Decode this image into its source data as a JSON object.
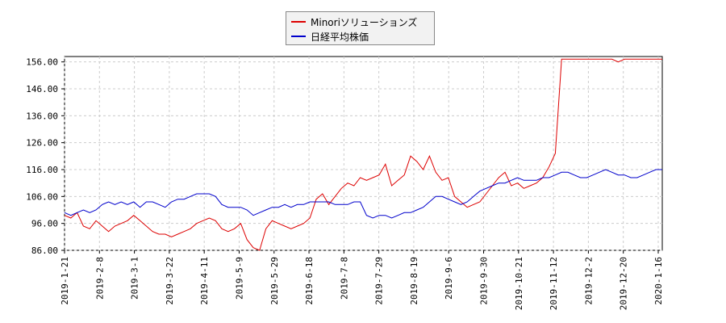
{
  "chart_data": {
    "type": "line",
    "xlabel": "",
    "ylabel": "",
    "ylim": [
      86,
      158
    ],
    "y_ticks": [
      "86.00",
      "96.00",
      "106.00",
      "116.00",
      "126.00",
      "136.00",
      "146.00",
      "156.00"
    ],
    "x_ticks": [
      "2019-1-21",
      "2019-2-8",
      "2019-3-1",
      "2019-3-22",
      "2019-4-11",
      "2019-5-9",
      "2019-5-29",
      "2019-6-18",
      "2019-7-8",
      "2019-7-29",
      "2019-8-19",
      "2019-9-6",
      "2019-9-30",
      "2019-10-21",
      "2019-11-12",
      "2019-12-2",
      "2019-12-20",
      "2020-1-16"
    ],
    "grid": true,
    "legend_position": "top-center",
    "series": [
      {
        "name": "Minoriソリューションズ",
        "color": "#dd0000",
        "values": [
          99,
          98,
          100,
          95,
          94,
          97,
          95,
          93,
          95,
          96,
          97,
          99,
          97,
          95,
          93,
          92,
          92,
          91,
          92,
          93,
          94,
          96,
          97,
          98,
          97,
          94,
          93,
          94,
          96,
          90,
          87,
          86,
          94,
          97,
          96,
          95,
          94,
          95,
          96,
          98,
          105,
          107,
          103,
          106,
          109,
          111,
          110,
          113,
          112,
          113,
          114,
          118,
          110,
          112,
          114,
          121,
          119,
          116,
          121,
          115,
          112,
          113,
          106,
          104,
          102,
          103,
          104,
          107,
          110,
          113,
          115,
          110,
          111,
          109,
          110,
          111,
          113,
          117,
          122,
          157,
          157,
          157,
          157,
          157,
          157,
          157,
          157,
          157,
          156,
          157,
          157,
          157,
          157,
          157,
          157,
          157
        ]
      },
      {
        "name": "日経平均株価",
        "color": "#0000cc",
        "values": [
          100,
          99,
          100,
          101,
          100,
          101,
          103,
          104,
          103,
          104,
          103,
          104,
          102,
          104,
          104,
          103,
          102,
          104,
          105,
          105,
          106,
          107,
          107,
          107,
          106,
          103,
          102,
          102,
          102,
          101,
          99,
          100,
          101,
          102,
          102,
          103,
          102,
          103,
          103,
          104,
          104,
          104,
          104,
          103,
          103,
          103,
          104,
          104,
          99,
          98,
          99,
          99,
          98,
          99,
          100,
          100,
          101,
          102,
          104,
          106,
          106,
          105,
          104,
          103,
          104,
          106,
          108,
          109,
          110,
          111,
          111,
          112,
          113,
          112,
          112,
          112,
          113,
          113,
          114,
          115,
          115,
          114,
          113,
          113,
          114,
          115,
          116,
          115,
          114,
          114,
          113,
          113,
          114,
          115,
          116,
          116
        ]
      }
    ]
  }
}
